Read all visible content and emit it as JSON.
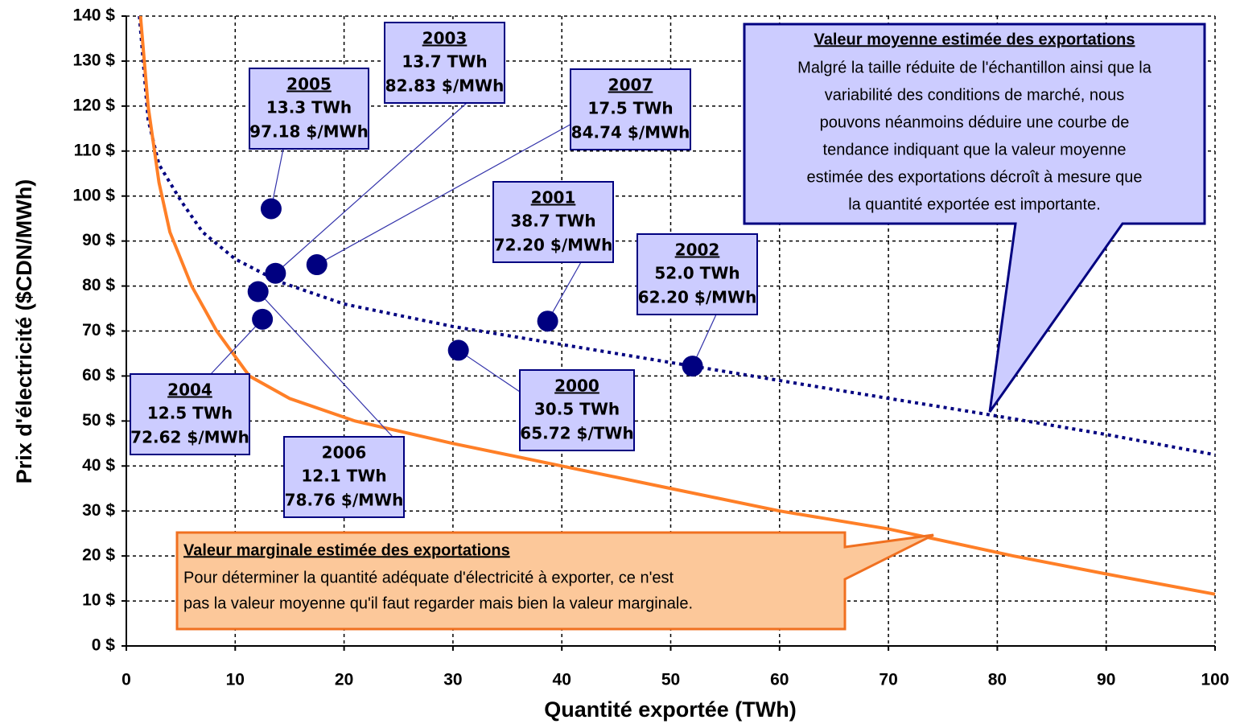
{
  "chart_data": {
    "type": "scatter",
    "xlabel": "Quantité exportée (TWh)",
    "ylabel": "Prix d'électricité ($CDN/MWh)",
    "xlim": [
      0,
      100
    ],
    "xticks": [
      0,
      10,
      20,
      30,
      40,
      50,
      60,
      70,
      80,
      90,
      100
    ],
    "ylim": [
      0,
      140
    ],
    "yticks": [
      {
        "value": 0,
        "label": "0 $"
      },
      {
        "value": 10,
        "label": "10 $"
      },
      {
        "value": 20,
        "label": "20 $"
      },
      {
        "value": 30,
        "label": "30 $"
      },
      {
        "value": 40,
        "label": "40 $"
      },
      {
        "value": 50,
        "label": "50 $"
      },
      {
        "value": 60,
        "label": "60 $"
      },
      {
        "value": 70,
        "label": "70 $"
      },
      {
        "value": 80,
        "label": "80 $"
      },
      {
        "value": 90,
        "label": "90 $"
      },
      {
        "value": 100,
        "label": "100 $"
      },
      {
        "value": 110,
        "label": "110 $"
      },
      {
        "value": 120,
        "label": "120 $"
      },
      {
        "value": 130,
        "label": "130 $"
      },
      {
        "value": 140,
        "label": "140 $"
      }
    ],
    "grid": true,
    "points": {
      "color": "#000080",
      "names": [
        "2000",
        "2001",
        "2002",
        "2003",
        "2004",
        "2005",
        "2006",
        "2007"
      ],
      "x": [
        30.5,
        38.7,
        52.0,
        13.7,
        12.5,
        13.3,
        12.1,
        17.5
      ],
      "x_labels": [
        "30.5 TWh",
        "38.7 TWh",
        "52.0 TWh",
        "13.7 TWh",
        "12.5 TWh",
        "13.3 TWh",
        "12.1 TWh",
        "17.5 TWh"
      ],
      "values": [
        65.72,
        72.2,
        62.2,
        82.83,
        72.62,
        97.18,
        78.76,
        84.74
      ],
      "value_labels": [
        "65.72 $/TWh",
        "72.20 $/MWh",
        "62.20 $/MWh",
        "82.83 $/MWh",
        "72.62 $/MWh",
        "97.18 $/MWh",
        "78.76 $/MWh",
        "84.74 $/MWh"
      ]
    },
    "series": [
      {
        "color": "#000080",
        "style": "dotted",
        "x": [
          1.2,
          2,
          3,
          5,
          7,
          10,
          14,
          20,
          30,
          40,
          52,
          65,
          79,
          90,
          100
        ],
        "values": [
          140,
          117,
          107,
          99,
          92,
          86,
          81,
          76,
          71,
          67,
          62.2,
          57,
          51.5,
          47,
          42.5
        ]
      },
      {
        "color": "#ff7f27",
        "style": "solid",
        "x": [
          1.3,
          2,
          3,
          4,
          6,
          8.3,
          11.3,
          15,
          21,
          30,
          40,
          50,
          60,
          70,
          81.5,
          90,
          100
        ],
        "values": [
          140,
          120,
          103,
          92,
          80,
          70,
          60,
          55,
          50,
          45,
          40,
          35,
          30,
          26,
          20,
          16,
          11.5
        ]
      }
    ],
    "annotations": [
      {
        "title": "Valeur moyenne estimée des exportations",
        "lines": [
          "Malgré la taille réduite de l'échantillon ainsi que la",
          "variabilité des conditions de marché, nous",
          "pouvons néanmoins déduire une courbe de",
          "tendance indiquant que la valeur moyenne",
          "estimée des exportations décroît à mesure que",
          "la quantité exportée est importante."
        ]
      },
      {
        "title": "Valeur marginale estimée des exportations",
        "lines": [
          "Pour déterminer la quantité adéquate d'électricité à exporter,  ce n'est",
          "pas la valeur moyenne qu'il faut regarder mais bien la valeur marginale."
        ]
      }
    ]
  }
}
